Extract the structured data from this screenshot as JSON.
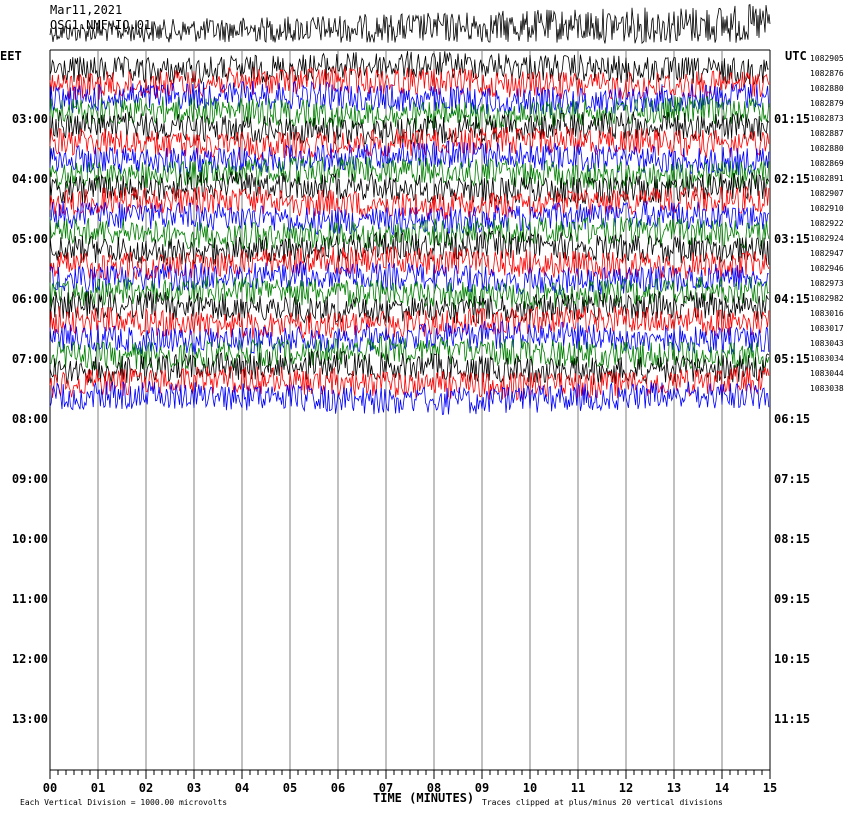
{
  "header": {
    "date": "Mar11,2021",
    "station": "OSC1.NMF.IO.01",
    "left_zone": "EET",
    "right_zone": "UTC"
  },
  "footer": {
    "scale_note": "Each Vertical Division = 1000.00 microvolts",
    "x_title": "TIME (MINUTES)",
    "clip_note": "Traces clipped at plus/minus 20 vertical divisions"
  },
  "colors": {
    "background": "#ffffff",
    "grid": "#808080",
    "trace_cycle": [
      "#000000",
      "#ff0000",
      "#0000ff",
      "#008000"
    ]
  },
  "chart_data": {
    "type": "line",
    "subtype": "helicorder",
    "title": "OSC1.NMF.IO.01",
    "xlabel": "TIME (MINUTES)",
    "x_range": [
      0,
      15
    ],
    "x_ticks": [
      "00",
      "01",
      "02",
      "03",
      "04",
      "05",
      "06",
      "07",
      "08",
      "09",
      "10",
      "11",
      "12",
      "13",
      "14",
      "15"
    ],
    "left_time_labels": [
      "03:00",
      "04:00",
      "05:00",
      "06:00",
      "07:00",
      "08:00",
      "09:00",
      "10:00",
      "11:00",
      "12:00",
      "13:00"
    ],
    "right_time_labels": [
      "01:15",
      "02:15",
      "03:15",
      "04:15",
      "05:15",
      "06:15",
      "07:15",
      "08:15",
      "09:15",
      "10:15",
      "11:15"
    ],
    "trace_values": [
      "1082905",
      "1082876",
      "1082880",
      "1082879",
      "1082873",
      "1082887",
      "1082880",
      "1082869",
      "1082891",
      "1082907",
      "1082910",
      "1082922",
      "1082924",
      "1082947",
      "1082946",
      "1082973",
      "1082982",
      "1083016",
      "1083017",
      "1083043",
      "1083034",
      "1083044",
      "1083038"
    ],
    "trace_count": 23,
    "grid": true
  }
}
